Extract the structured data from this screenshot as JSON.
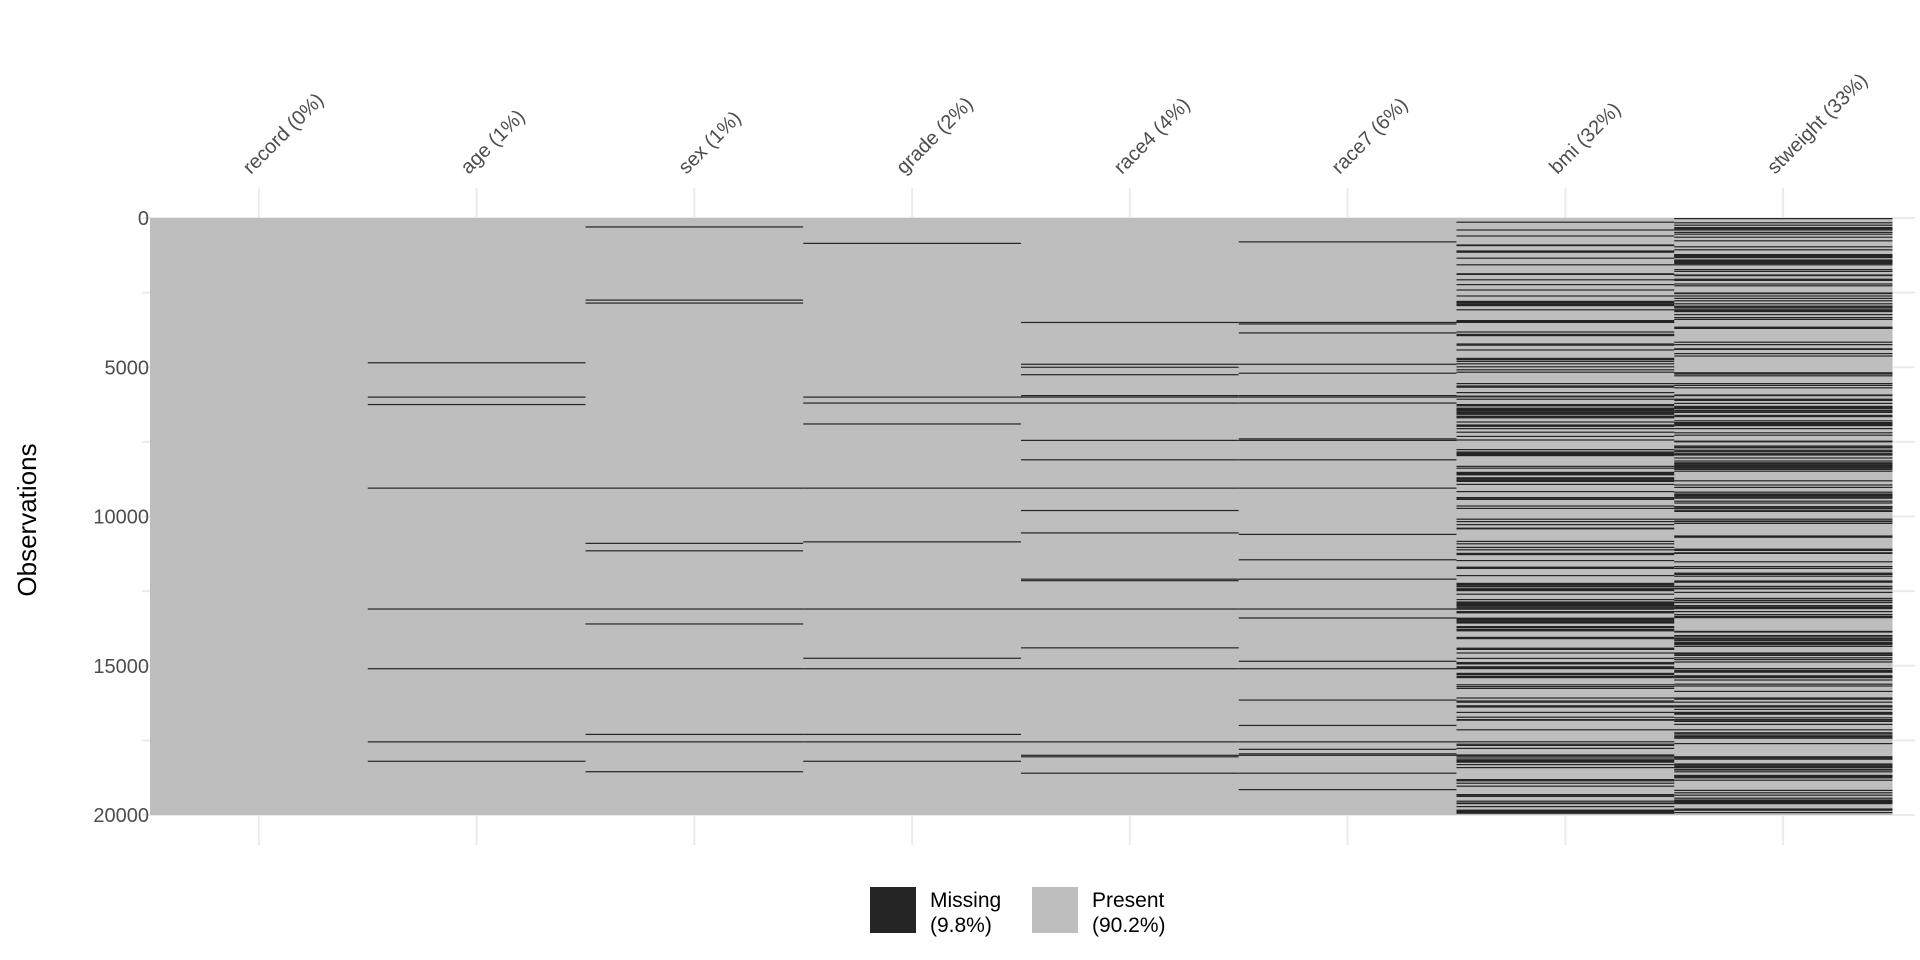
{
  "chart_data": {
    "type": "heatmap",
    "title": "",
    "xlabel": "",
    "ylabel": "Observations",
    "ylim": [
      0,
      20000
    ],
    "y_ticks": [
      "0",
      "5000",
      "10000",
      "15000",
      "20000"
    ],
    "y_tick_values": [
      0,
      5000,
      10000,
      15000,
      20000
    ],
    "x_position": "top",
    "grid": true,
    "legend_position": "bottom",
    "colors": {
      "missing": "#252525",
      "present": "#bebebe",
      "grid": "#ebebeb"
    },
    "columns": [
      {
        "label": "record (0%)",
        "missing_rows": []
      },
      {
        "label": "age (1%)",
        "missing_rows": [
          4850,
          6000,
          6250,
          9050,
          13100,
          15100,
          17550,
          18200
        ]
      },
      {
        "label": "sex (1%)",
        "missing_rows": [
          300,
          2750,
          2850,
          9050,
          10900,
          11150,
          13100,
          13600,
          15100,
          17300,
          17550,
          18550
        ]
      },
      {
        "label": "grade (2%)",
        "missing_rows": [
          850,
          6000,
          6200,
          6900,
          9050,
          10850,
          13100,
          14750,
          15100,
          17300,
          17550,
          18200
        ]
      },
      {
        "label": "race4 (4%)",
        "missing_rows": [
          3500,
          4900,
          5000,
          5250,
          5950,
          6000,
          6200,
          7450,
          8100,
          9050,
          9800,
          10550,
          12100,
          12150,
          13100,
          14400,
          15100,
          17550,
          18000,
          18050,
          18600
        ]
      },
      {
        "label": "race7 (6%)",
        "missing_rows": [
          800,
          3500,
          3550,
          3850,
          4900,
          5200,
          5950,
          6000,
          6200,
          7400,
          7450,
          8100,
          9050,
          10600,
          11450,
          12100,
          13100,
          13400,
          14850,
          15100,
          16150,
          17000,
          17550,
          17800,
          17950,
          18000,
          18600,
          19150
        ]
      },
      {
        "label": "bmi (32%)",
        "missing_density": 0.32
      },
      {
        "label": "stweight (33%)",
        "missing_density": 0.33
      }
    ],
    "legend": [
      {
        "key": "missing",
        "label_line1": "Missing",
        "label_line2": "(9.8%)"
      },
      {
        "key": "present",
        "label_line1": "Present",
        "label_line2": "(90.2%)"
      }
    ]
  }
}
